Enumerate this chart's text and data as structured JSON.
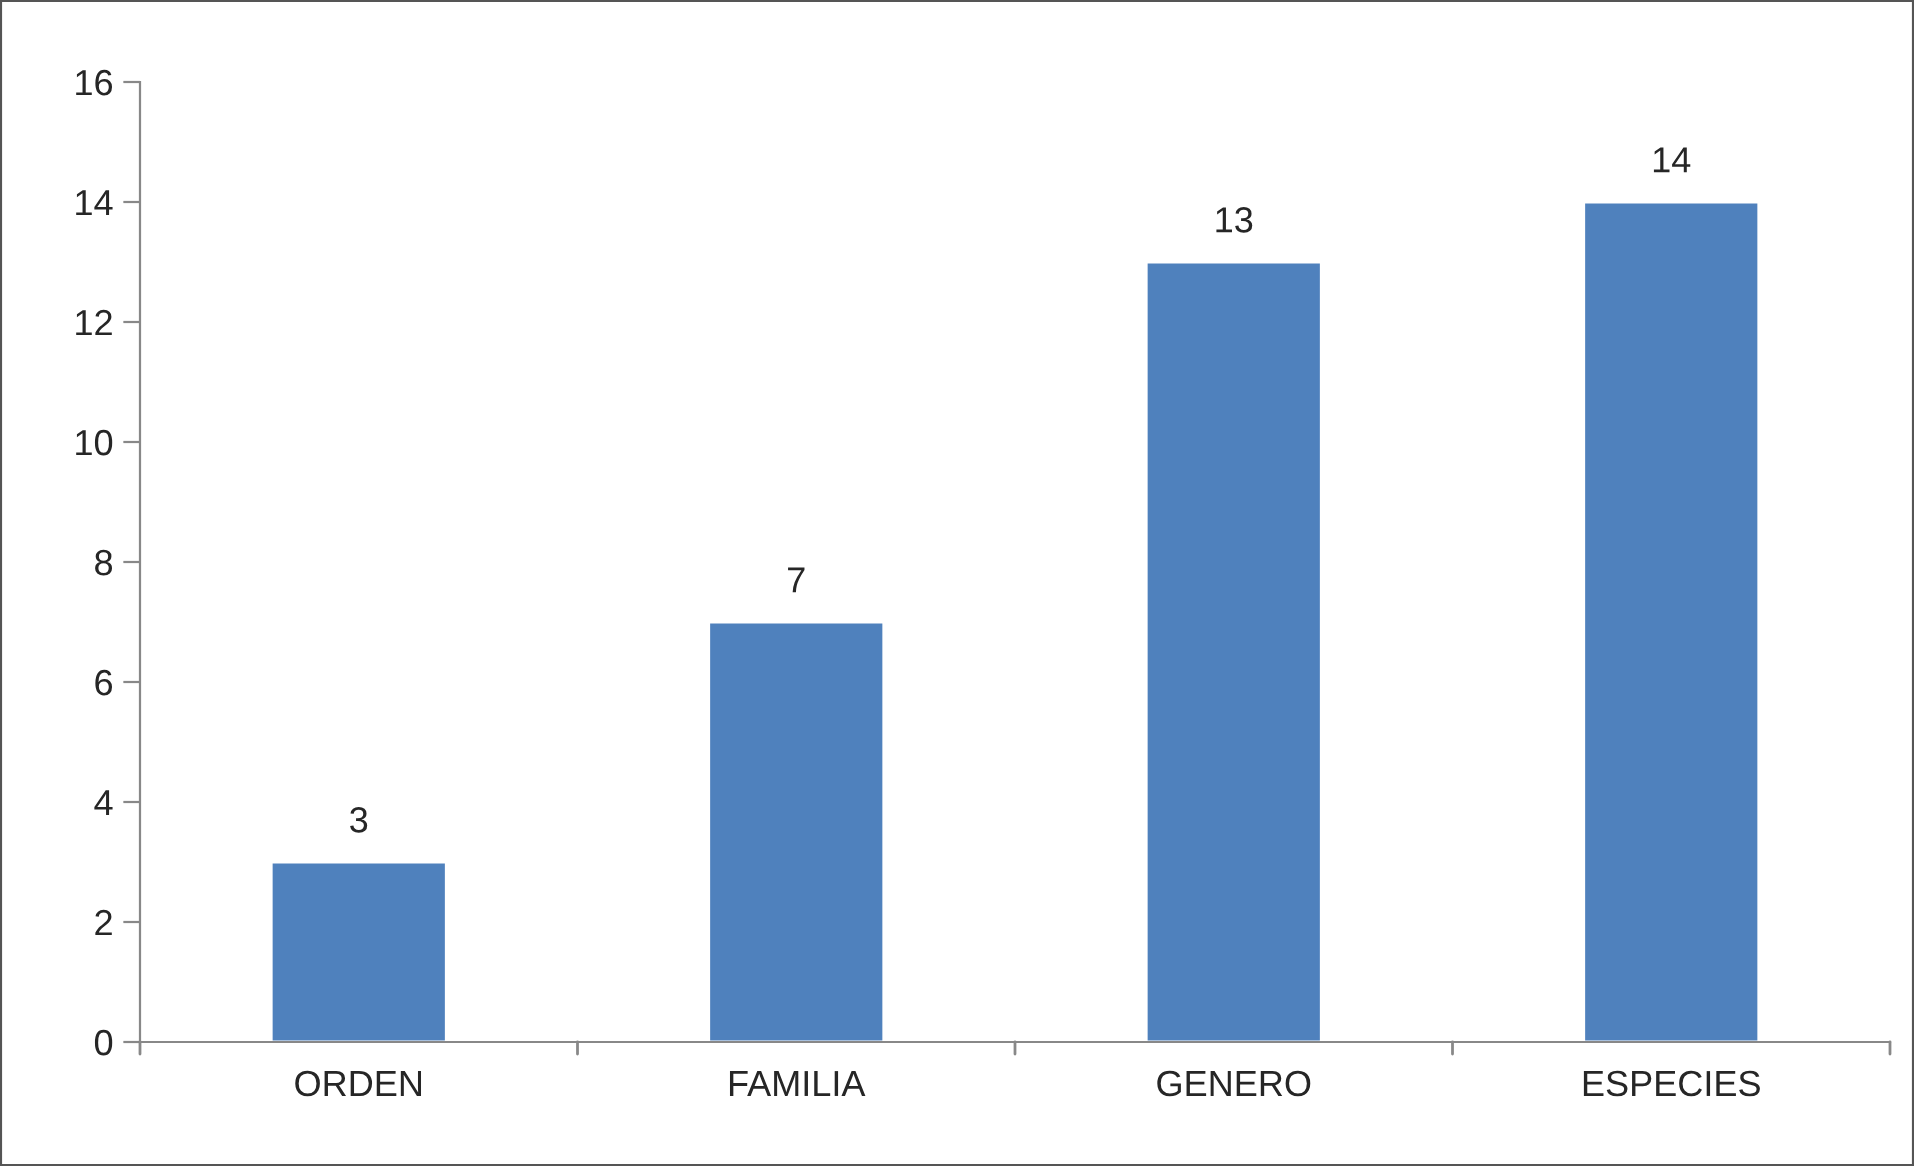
{
  "chart_data": {
    "type": "bar",
    "categories": [
      "ORDEN",
      "FAMILIA",
      "GENERO",
      "ESPECIES"
    ],
    "values": [
      3,
      7,
      13,
      14
    ],
    "color": "#4f81bd",
    "ylim": [
      0,
      16
    ],
    "yticks": [
      0,
      2,
      4,
      6,
      8,
      10,
      12,
      14,
      16
    ],
    "data_labels": true,
    "grid": false,
    "legend": false
  }
}
